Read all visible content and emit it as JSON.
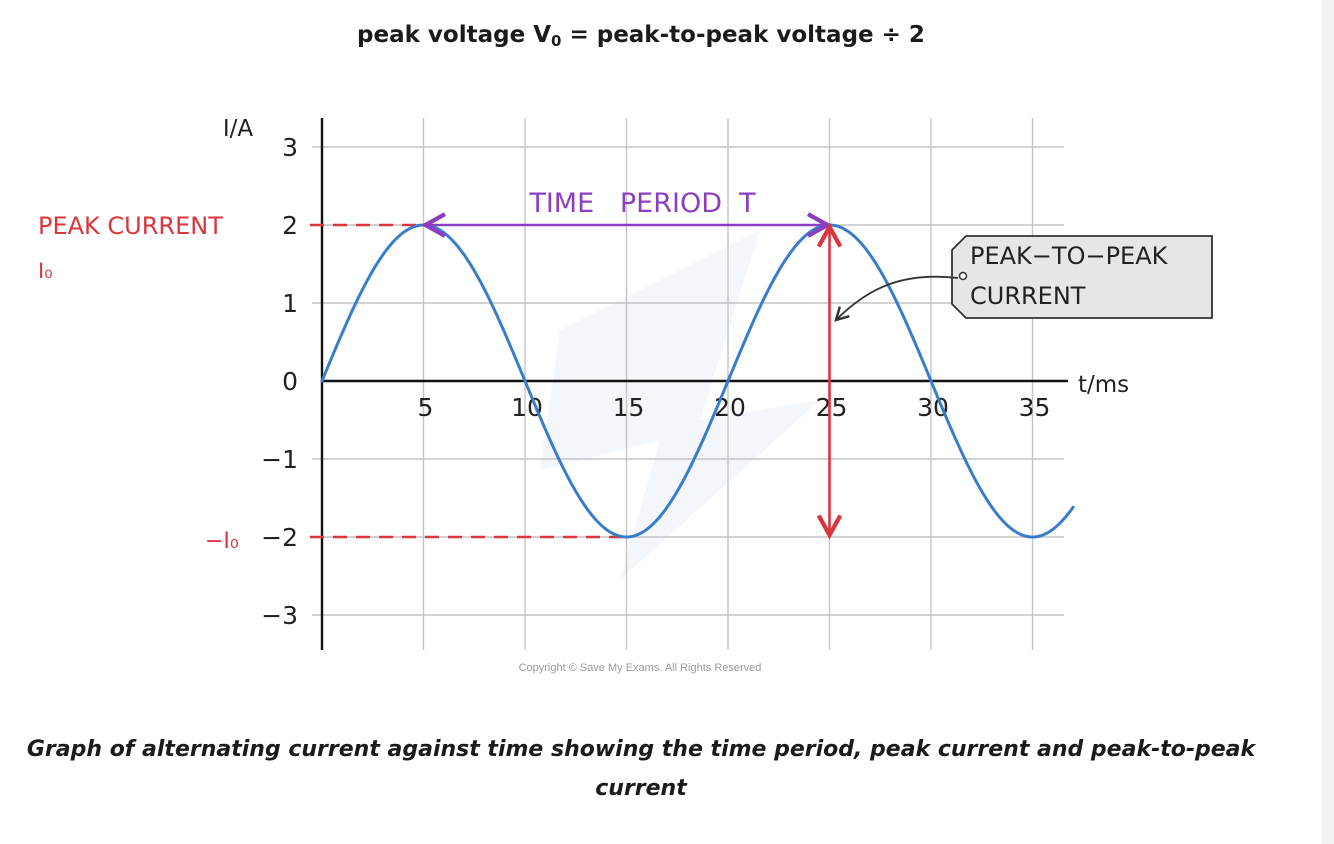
{
  "equation": {
    "prefix": "peak voltage V",
    "subscript": "0",
    "suffix": " = peak-to-peak voltage ÷ 2"
  },
  "chart_data": {
    "type": "line",
    "xlabel": "t/ms",
    "ylabel": "I/A",
    "xlim": [
      0,
      37
    ],
    "ylim": [
      -3.5,
      3.5
    ],
    "x_ticks": [
      5,
      10,
      15,
      20,
      25,
      30,
      35
    ],
    "y_ticks": [
      3,
      2,
      1,
      0,
      -1,
      -2,
      -3
    ],
    "x_tick_labels": [
      "5",
      "10",
      "15",
      "20",
      "25",
      "30",
      "35"
    ],
    "y_tick_labels": [
      "3",
      "2",
      "1",
      "0",
      "−1",
      "−2",
      "−3"
    ],
    "grid": true,
    "series": [
      {
        "amplitude": 2,
        "period_ms": 20,
        "x_start": 0,
        "x_end": 37,
        "color": "#3a7ccc"
      }
    ],
    "annotations": {
      "time_period": {
        "label": "TIME   PERIOD  T",
        "x_start": 5,
        "x_end": 25,
        "y": 2,
        "color": "#8a3fc0"
      },
      "peak_current": {
        "label": "PEAK CURRENT",
        "symbol": "I₀",
        "y": 2,
        "x_end": 5,
        "color": "#d9363e"
      },
      "negative_peak": {
        "label": "−I₀",
        "y": -2,
        "x_end": 15,
        "color": "#d9363e"
      },
      "peak_to_peak": {
        "line1": "PEAK−TO−PEAK",
        "line2": "CURRENT",
        "x": 25,
        "y_top": 2,
        "y_bottom": -2,
        "color": "#d9363e"
      }
    },
    "watermark": "Copyright © Save My Exams. All Rights Reserved"
  },
  "caption": {
    "line1": "Graph of alternating current against time showing the time period, peak current and peak-to-peak",
    "line2": "current"
  }
}
